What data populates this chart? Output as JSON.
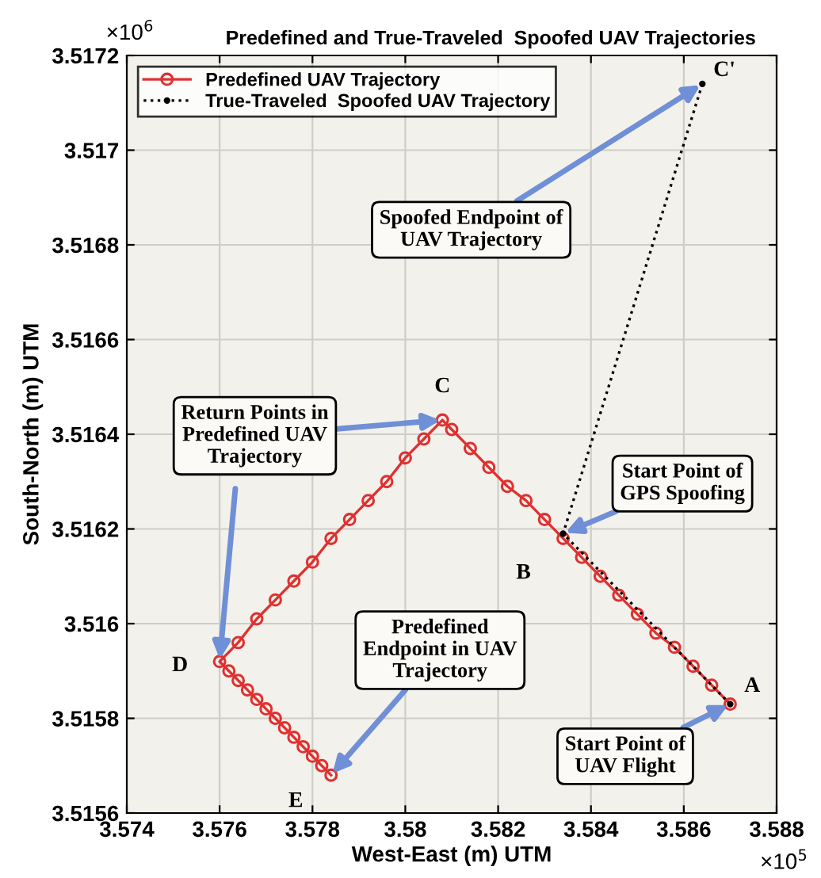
{
  "chart_data": {
    "type": "line",
    "title": "Predefined and True-Traveled  Spoofed UAV Trajectories",
    "xlabel": "West-East (m) UTM",
    "ylabel": "South-North (m) UTM",
    "xlim": [
      3.574,
      3.588
    ],
    "ylim": [
      3.5156,
      3.5172
    ],
    "xticks": [
      3.574,
      3.576,
      3.578,
      3.58,
      3.582,
      3.584,
      3.586,
      3.588
    ],
    "yticks": [
      3.5156,
      3.5158,
      3.516,
      3.5162,
      3.5164,
      3.5166,
      3.5168,
      3.517,
      3.5172
    ],
    "grid": true,
    "legend": "top left",
    "series": [
      {
        "name": "Predefined UAV Trajectory",
        "color": "#e03030",
        "marker": "circle",
        "x": [
          3.587,
          3.5866,
          3.5862,
          3.5858,
          3.5854,
          3.585,
          3.5846,
          3.5842,
          3.5838,
          3.5834,
          3.583,
          3.5826,
          3.5822,
          3.5818,
          3.5814,
          3.581,
          3.5808,
          3.5804,
          3.58,
          3.5796,
          3.5792,
          3.5788,
          3.5784,
          3.578,
          3.5776,
          3.5772,
          3.5768,
          3.5764,
          3.576,
          3.5762,
          3.5764,
          3.5766,
          3.5768,
          3.577,
          3.5772,
          3.5774,
          3.5776,
          3.5778,
          3.578,
          3.5782,
          3.5784
        ],
        "values": [
          3.51583,
          3.51587,
          3.51591,
          3.51595,
          3.51598,
          3.51602,
          3.51606,
          3.5161,
          3.51614,
          3.51618,
          3.51622,
          3.51626,
          3.51629,
          3.51633,
          3.51637,
          3.51641,
          3.51643,
          3.51639,
          3.51635,
          3.5163,
          3.51626,
          3.51622,
          3.51618,
          3.51613,
          3.51609,
          3.51605,
          3.51601,
          3.51596,
          3.51592,
          3.5159,
          3.51588,
          3.51586,
          3.51584,
          3.51582,
          3.5158,
          3.51578,
          3.51576,
          3.51574,
          3.51572,
          3.5157,
          3.51568
        ]
      },
      {
        "name": "True-Traveled  Spoofed UAV Trajectory",
        "color": "#000000",
        "marker": "circle",
        "line_style": "dotted",
        "x": [
          3.587,
          3.5834,
          3.5864
        ],
        "values": [
          3.51583,
          3.51619,
          3.51714
        ]
      }
    ],
    "annotations": [
      {
        "text": "Spoofed Endpoint of\nUAV Trajectory",
        "x": 3.5864,
        "y": 3.51714
      },
      {
        "text": "Start Point of\nGPS Spoofing",
        "x": 3.5834,
        "y": 3.51619
      },
      {
        "text": "Return Points in\nPredefined UAV\nTrajectory",
        "x": 3.5808,
        "y": 3.51643
      },
      {
        "text": "Predefined\nEndpoint in UAV\nTrajectory",
        "x": 3.5784,
        "y": 3.51568
      },
      {
        "text": "Start Point of\nUAV Flight",
        "x": 3.587,
        "y": 3.51583
      },
      {
        "text": "A",
        "x": 3.587,
        "y": 3.51583
      },
      {
        "text": "B",
        "x": 3.5834,
        "y": 3.51619
      },
      {
        "text": "C",
        "x": 3.5808,
        "y": 3.51643
      },
      {
        "text": "C'",
        "x": 3.5864,
        "y": 3.51714
      },
      {
        "text": "D",
        "x": 3.576,
        "y": 3.51592
      },
      {
        "text": "E",
        "x": 3.5784,
        "y": 3.51568
      },
      "×10$^{6}$",
      "×10$^{5}$"
    ]
  }
}
